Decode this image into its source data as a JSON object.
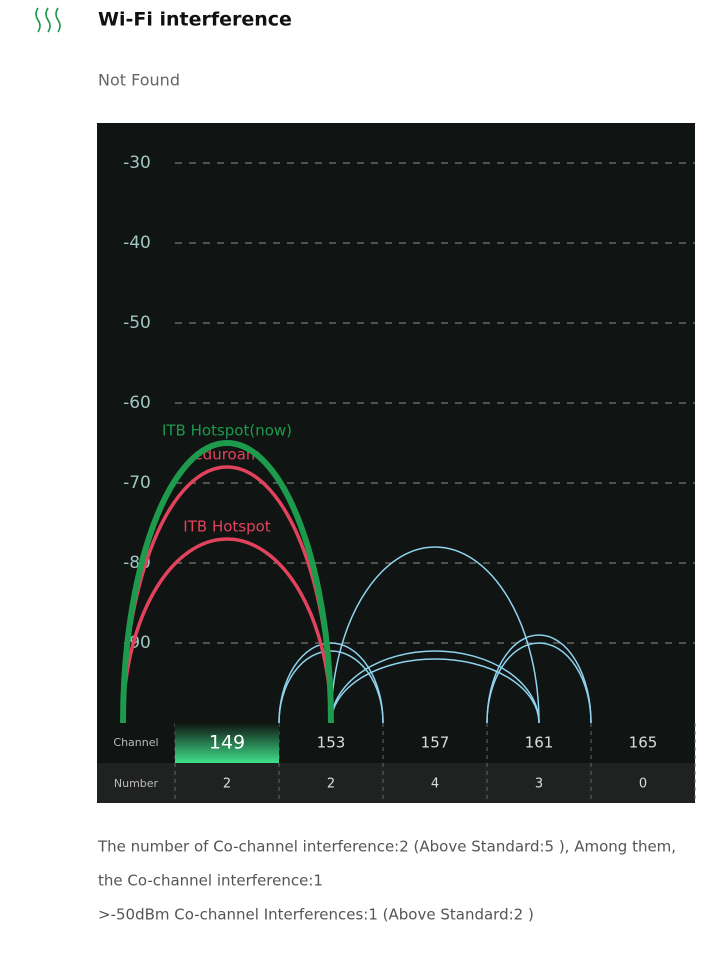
{
  "header": {
    "title": "Wi-Fi interference",
    "status": "Not Found"
  },
  "chart_data": {
    "type": "arc",
    "ylim": [
      -100,
      -25
    ],
    "yticks": [
      -30,
      -40,
      -50,
      -60,
      -70,
      -80,
      -90
    ],
    "grid": true,
    "xlim": [
      144,
      167
    ],
    "current_channel": 149,
    "networks": [
      {
        "name": "ITB Hotspot(now)",
        "channel": 149,
        "width": 8,
        "level": -65,
        "color": "#1d9a4c"
      },
      {
        "name": "eduroam",
        "channel": 149,
        "width": 8,
        "level": -68,
        "color": "#e2435c"
      },
      {
        "name": "ITB Hotspot",
        "channel": 149,
        "width": 8,
        "level": -77,
        "color": "#e2435c"
      },
      {
        "channel": 153,
        "width": 4,
        "level": -90,
        "color": "#8fd3ee"
      },
      {
        "channel": 153,
        "width": 4,
        "level": -91,
        "color": "#8fd3ee"
      },
      {
        "channel": 157,
        "width": 8,
        "level": -78,
        "color": "#8fd3ee"
      },
      {
        "channel": 157,
        "width": 8,
        "level": -91,
        "color": "#8fd3ee"
      },
      {
        "channel": 157,
        "width": 8,
        "level": -92,
        "color": "#8fd3ee"
      },
      {
        "channel": 161,
        "width": 4,
        "level": -89,
        "color": "#8fd3ee"
      },
      {
        "channel": 161,
        "width": 4,
        "level": -90,
        "color": "#8fd3ee"
      }
    ],
    "channel_row": {
      "label": "Channel",
      "channels": [
        149,
        153,
        157,
        161,
        165
      ]
    },
    "number_row": {
      "label": "Number",
      "counts": [
        2,
        2,
        4,
        3,
        0
      ]
    }
  },
  "footer": {
    "lines": [
      "The number of Co-channel interference:2 (Above Standard:5 ), Among them,",
      "the Co-channel interference:1",
      ">-50dBm Co-channel Interferences:1 (Above Standard:2 )"
    ]
  }
}
